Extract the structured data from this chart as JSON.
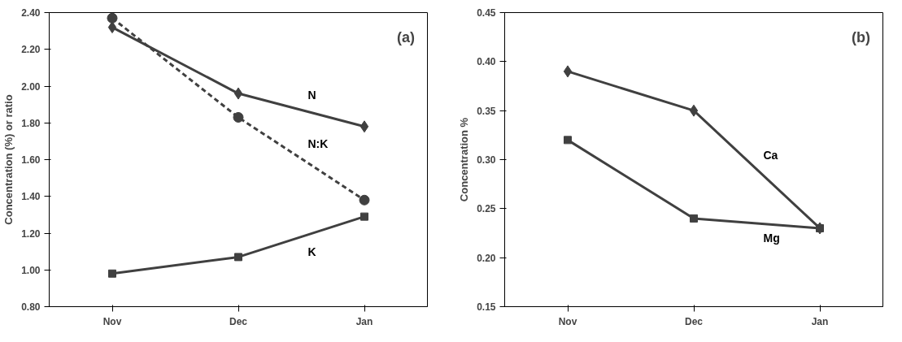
{
  "chart_data": [
    {
      "type": "line",
      "categories": [
        "Nov",
        "Dec",
        "Jan"
      ],
      "ylabel": "Concentration (%) or ratio",
      "annotations": [
        "(a)"
      ],
      "ylim": [
        0.8,
        2.4
      ],
      "yticks": [
        {
          "value": 0.8,
          "label": "0.80"
        },
        {
          "value": 1.0,
          "label": "1.00"
        },
        {
          "value": 1.2,
          "label": "1.20"
        },
        {
          "value": 1.4,
          "label": "1.40"
        },
        {
          "value": 1.6,
          "label": "1.60"
        },
        {
          "value": 1.8,
          "label": "1.80"
        },
        {
          "value": 2.0,
          "label": "2.00"
        },
        {
          "value": 2.2,
          "label": "2.20"
        },
        {
          "value": 2.4,
          "label": "2.40"
        }
      ],
      "grid": false,
      "series": [
        {
          "name": "N",
          "color": "#404040",
          "marker": "diamond",
          "line_style": "solid",
          "values": [
            2.32,
            1.96,
            1.78
          ]
        },
        {
          "name": "N:K",
          "color": "#404040",
          "marker": "circle",
          "line_style": "dashed",
          "values": [
            2.37,
            1.83,
            1.38
          ]
        },
        {
          "name": "K",
          "color": "#404040",
          "marker": "square",
          "line_style": "solid",
          "values": [
            0.98,
            1.07,
            1.29
          ]
        }
      ]
    },
    {
      "type": "line",
      "categories": [
        "Nov",
        "Dec",
        "Jan"
      ],
      "ylabel": "Concentration %",
      "annotations": [
        "(b)"
      ],
      "ylim": [
        0.15,
        0.45
      ],
      "yticks": [
        {
          "value": 0.15,
          "label": "0.15"
        },
        {
          "value": 0.2,
          "label": "0.20"
        },
        {
          "value": 0.25,
          "label": "0.25"
        },
        {
          "value": 0.3,
          "label": "0.30"
        },
        {
          "value": 0.35,
          "label": "0.35"
        },
        {
          "value": 0.4,
          "label": "0.40"
        },
        {
          "value": 0.45,
          "label": "0.45"
        }
      ],
      "grid": false,
      "series": [
        {
          "name": "Ca",
          "color": "#404040",
          "marker": "diamond",
          "line_style": "solid",
          "values": [
            0.39,
            0.35,
            0.23
          ]
        },
        {
          "name": "Mg",
          "color": "#404040",
          "marker": "square",
          "line_style": "solid",
          "values": [
            0.32,
            0.24,
            0.23
          ]
        }
      ]
    }
  ]
}
